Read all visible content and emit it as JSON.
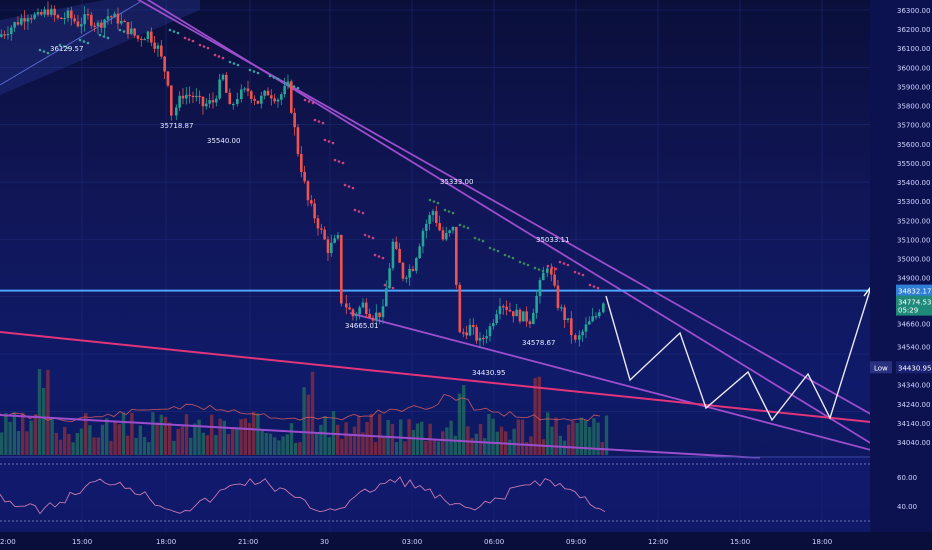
{
  "chart_data": {
    "type": "candlestick",
    "price_axis": {
      "ticks": [
        "36300.00",
        "36200.00",
        "36100.00",
        "36000.00",
        "35900.00",
        "35800.00",
        "35700.00",
        "35600.00",
        "35500.00",
        "35400.00",
        "35300.00",
        "35200.00",
        "35100.00",
        "35000.00",
        "34900.00",
        "34660.00",
        "34540.00",
        "34430.95",
        "34340.00",
        "34240.00",
        "34140.00",
        "34040.00"
      ],
      "tick_values": [
        36300,
        36200,
        36100,
        36000,
        35900,
        35800,
        35700,
        35600,
        35500,
        35400,
        35300,
        35200,
        35100,
        35000,
        34900,
        34660,
        34540,
        34430.95,
        34340,
        34240,
        34140,
        34040
      ]
    },
    "time_axis": {
      "labels": [
        "2:00",
        "15:00",
        "18:00",
        "21:00",
        "30",
        "03:00",
        "06:00",
        "09:00",
        "12:00",
        "15:00",
        "18:00"
      ]
    },
    "oscillator_axis": {
      "ticks": [
        "60.00",
        "40.00"
      ]
    },
    "current_price": {
      "label": "34832.17",
      "value": 34832.17
    },
    "last_price": {
      "label": "34774.53",
      "countdown": "05:29",
      "value": 34774.53
    },
    "low_marker": {
      "label": "Low",
      "value_label": "34430.95",
      "value": 34430.95
    },
    "annotations": [
      {
        "text": "36129.57",
        "value": 36129.57
      },
      {
        "text": "35718.87",
        "value": 35718.87
      },
      {
        "text": "35540.00",
        "value": 35540.0
      },
      {
        "text": "35333.00",
        "value": 35333.0
      },
      {
        "text": "35033.11",
        "value": 35033.11
      },
      {
        "text": "34665.01",
        "value": 34665.01
      },
      {
        "text": "34578.67",
        "value": 34578.67
      },
      {
        "text": "34430.95",
        "value": 34430.95
      }
    ],
    "colors": {
      "up": "#26a69a",
      "down": "#ef5350",
      "trendline": "#9c4dcc",
      "pink_line": "#e0357a",
      "horizontal_level": "#4da3ff",
      "projection": "#ffffff"
    }
  }
}
